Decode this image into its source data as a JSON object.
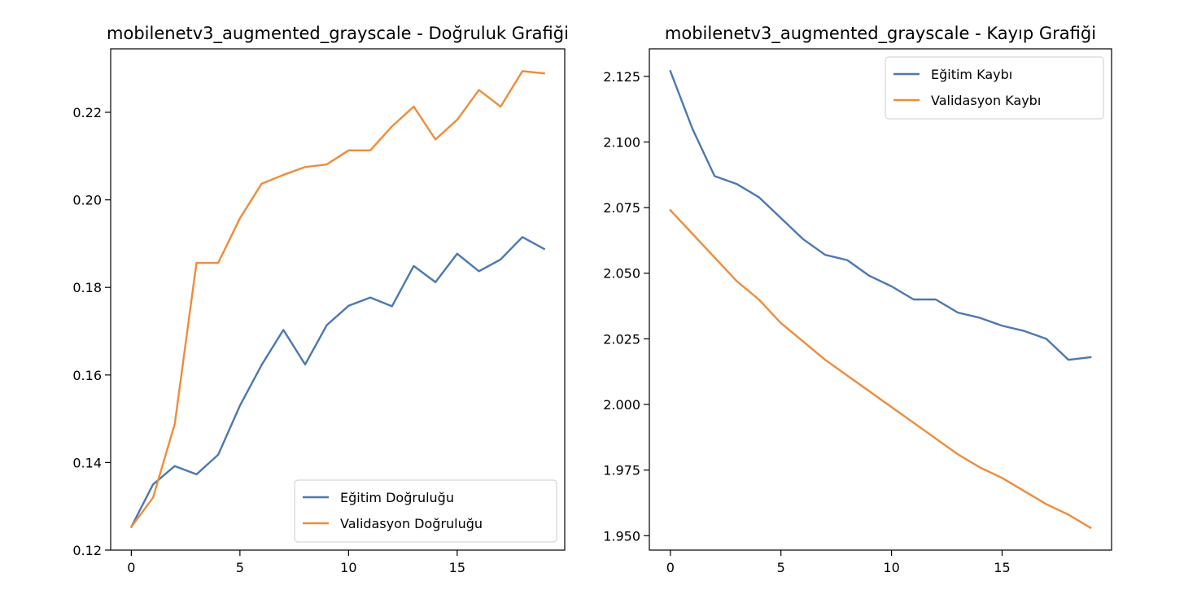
{
  "chart_data": [
    {
      "type": "line",
      "title": "mobilenetv3_augmented_grayscale - Doğruluk Grafiği",
      "xlabel": "",
      "ylabel": "",
      "x": [
        0,
        1,
        2,
        3,
        4,
        5,
        6,
        7,
        8,
        9,
        10,
        11,
        12,
        13,
        14,
        15,
        16,
        17,
        18,
        19
      ],
      "xlim": [
        -0.95,
        19.95
      ],
      "ylim": [
        0.12,
        0.2345
      ],
      "xticks": [
        0,
        5,
        10,
        15
      ],
      "yticks": [
        0.12,
        0.14,
        0.16,
        0.18,
        0.2,
        0.22
      ],
      "ytick_labels": [
        "0.12",
        "0.14",
        "0.16",
        "0.18",
        "0.20",
        "0.22"
      ],
      "legend_position": "lower-right",
      "grid": false,
      "series": [
        {
          "name": "Eğitim Doğruluğu",
          "color": "#4c78b0",
          "values": [
            0.1253,
            0.135,
            0.1392,
            0.1373,
            0.1418,
            0.153,
            0.1623,
            0.1703,
            0.1624,
            0.1714,
            0.1758,
            0.1777,
            0.1757,
            0.1849,
            0.1812,
            0.1877,
            0.1837,
            0.1864,
            0.1915,
            0.1888
          ]
        },
        {
          "name": "Validasyon Doğruluğu",
          "color": "#ef8c3a",
          "values": [
            0.1253,
            0.132,
            0.1488,
            0.1856,
            0.1856,
            0.1958,
            0.2037,
            0.2057,
            0.2075,
            0.2081,
            0.2113,
            0.2113,
            0.2168,
            0.2213,
            0.2138,
            0.2183,
            0.2251,
            0.2213,
            0.2294,
            0.2289
          ]
        }
      ]
    },
    {
      "type": "line",
      "title": "mobilenetv3_augmented_grayscale - Kayıp Grafiği",
      "xlabel": "",
      "ylabel": "",
      "x": [
        0,
        1,
        2,
        3,
        4,
        5,
        6,
        7,
        8,
        9,
        10,
        11,
        12,
        13,
        14,
        15,
        16,
        17,
        18,
        19
      ],
      "xlim": [
        -0.95,
        19.95
      ],
      "ylim": [
        1.9445,
        2.1355
      ],
      "xticks": [
        0,
        5,
        10,
        15
      ],
      "yticks": [
        1.95,
        1.975,
        2.0,
        2.025,
        2.05,
        2.075,
        2.1,
        2.125
      ],
      "ytick_labels": [
        "1.950",
        "1.975",
        "2.000",
        "2.025",
        "2.050",
        "2.075",
        "2.100",
        "2.125"
      ],
      "legend_position": "upper-right",
      "grid": false,
      "series": [
        {
          "name": "Eğitim Kaybı",
          "color": "#4c78b0",
          "values": [
            2.127,
            2.105,
            2.087,
            2.084,
            2.079,
            2.071,
            2.063,
            2.057,
            2.055,
            2.049,
            2.045,
            2.04,
            2.04,
            2.035,
            2.033,
            2.03,
            2.028,
            2.025,
            2.017,
            2.018
          ]
        },
        {
          "name": "Validasyon Kaybı",
          "color": "#ef8c3a",
          "values": [
            2.074,
            2.065,
            2.056,
            2.047,
            2.04,
            2.031,
            2.024,
            2.017,
            2.011,
            2.005,
            1.999,
            1.993,
            1.987,
            1.981,
            1.976,
            1.972,
            1.967,
            1.962,
            1.958,
            1.953
          ]
        }
      ]
    }
  ]
}
